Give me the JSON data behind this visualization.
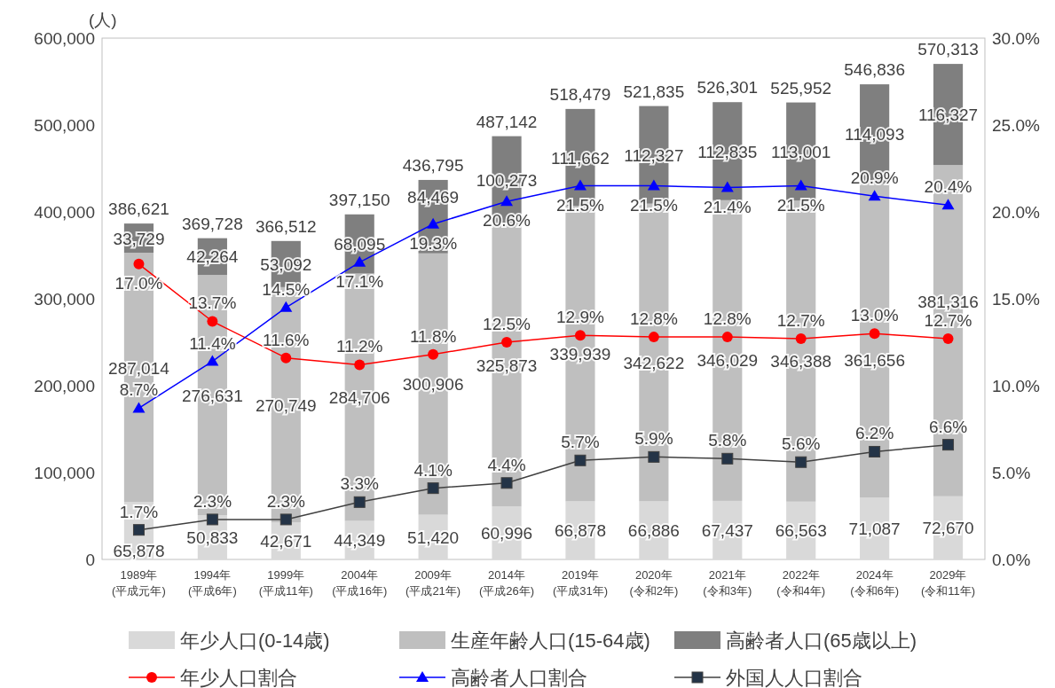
{
  "chart_data": {
    "type": "bar",
    "stacked": true,
    "ylabel": "(人)",
    "categories": [
      "1989年\n(平成元年)",
      "1994年\n(平成6年)",
      "1999年\n(平成11年)",
      "2004年\n(平成16年)",
      "2009年\n(平成21年)",
      "2014年\n(平成26年)",
      "2019年\n(平成31年)",
      "2020年\n(令和2年)",
      "2021年\n(令和3年)",
      "2022年\n(令和4年)",
      "2024年\n(令和6年)",
      "2029年\n(令和11年)"
    ],
    "series": [
      {
        "name": "年少人口(0-14歳)",
        "color": "#d9d9d9",
        "values": [
          65878,
          50833,
          42671,
          44349,
          51420,
          60996,
          66878,
          66886,
          67437,
          66563,
          71087,
          72670
        ],
        "value_labels": [
          "65,878",
          "50,833",
          "42,671",
          "44,349",
          "51,420",
          "60,996",
          "66,878",
          "66,886",
          "67,437",
          "66,563",
          "71,087",
          "72,670"
        ]
      },
      {
        "name": "生産年齢人口(15-64歳)",
        "color": "#bfbfbf",
        "values": [
          287014,
          276631,
          270749,
          284706,
          300906,
          325873,
          339939,
          342622,
          346029,
          346388,
          361656,
          381316
        ],
        "value_labels": [
          "287,014",
          "276,631",
          "270,749",
          "284,706",
          "300,906",
          "325,873",
          "339,939",
          "342,622",
          "346,029",
          "346,388",
          "361,656",
          "381,316"
        ]
      },
      {
        "name": "高齢者人口(65歳以上)",
        "color": "#7f7f7f",
        "values": [
          33729,
          42264,
          53092,
          68095,
          84469,
          100273,
          111662,
          112327,
          112835,
          113001,
          114093,
          116327
        ],
        "value_labels": [
          "33,729",
          "42,264",
          "53,092",
          "68,095",
          "84,469",
          "100,273",
          "111,662",
          "112,327",
          "112,835",
          "113,001",
          "114,093",
          "116,327"
        ]
      },
      {
        "name": "年少人口割合",
        "type": "line",
        "axis": "y2",
        "marker": "circle",
        "color": "#ff0000",
        "values": [
          17.0,
          13.7,
          11.6,
          11.2,
          11.8,
          12.5,
          12.9,
          12.8,
          12.8,
          12.7,
          13.0,
          12.7
        ],
        "value_labels": [
          "17.0%",
          "13.7%",
          "11.6%",
          "11.2%",
          "11.8%",
          "12.5%",
          "12.9%",
          "12.8%",
          "12.8%",
          "12.7%",
          "13.0%",
          "12.7%"
        ]
      },
      {
        "name": "高齢者人口割合",
        "type": "line",
        "axis": "y2",
        "marker": "triangle",
        "color": "#0000ff",
        "values": [
          8.7,
          11.4,
          14.5,
          17.1,
          19.3,
          20.6,
          21.5,
          21.5,
          21.4,
          21.5,
          20.9,
          20.4
        ],
        "value_labels": [
          "8.7%",
          "11.4%",
          "14.5%",
          "17.1%",
          "19.3%",
          "20.6%",
          "21.5%",
          "21.5%",
          "21.4%",
          "21.5%",
          "20.9%",
          "20.4%"
        ]
      },
      {
        "name": "外国人人口割合",
        "type": "line",
        "axis": "y2",
        "marker": "square",
        "color": "#404040",
        "values": [
          1.7,
          2.3,
          2.3,
          3.3,
          4.1,
          4.4,
          5.7,
          5.9,
          5.8,
          5.6,
          6.2,
          6.6
        ],
        "value_labels": [
          "1.7%",
          "2.3%",
          "2.3%",
          "3.3%",
          "4.1%",
          "4.4%",
          "5.7%",
          "5.9%",
          "5.8%",
          "5.6%",
          "6.2%",
          "6.6%"
        ]
      }
    ],
    "totals": [
      "386,621",
      "369,728",
      "366,512",
      "397,150",
      "436,795",
      "487,142",
      "518,479",
      "521,835",
      "526,301",
      "525,952",
      "546,836",
      "570,313"
    ],
    "ylim": [
      0,
      600000
    ],
    "yticks": [
      0,
      {
        "value": 100000,
        "label": "100,000"
      },
      {
        "value": 200000,
        "label": "200,000"
      },
      {
        "value": 300000,
        "label": "300,000"
      },
      {
        "value": 400000,
        "label": "400,000"
      },
      {
        "value": 500000,
        "label": "500,000"
      },
      {
        "value": 600000,
        "label": "600,000"
      }
    ],
    "y2lim": [
      0,
      30
    ],
    "y2ticks": [
      {
        "value": 0,
        "label": "0.0%"
      },
      {
        "value": 5,
        "label": "5.0%"
      },
      {
        "value": 10,
        "label": "10.0%"
      },
      {
        "value": 15,
        "label": "15.0%"
      },
      {
        "value": 20,
        "label": "20.0%"
      },
      {
        "value": 25,
        "label": "25.0%"
      },
      {
        "value": 30,
        "label": "30.0%"
      }
    ],
    "grid": false,
    "legend": "bottom"
  }
}
